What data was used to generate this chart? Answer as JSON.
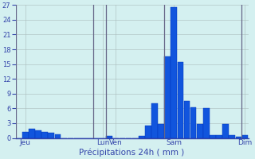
{
  "xlabel": "Précipitations 24h ( mm )",
  "background_color": "#d4f0f0",
  "bar_color": "#1155dd",
  "bar_edge_color": "#0033bb",
  "grid_color": "#aabbbb",
  "vline_color": "#666688",
  "ylim": [
    0,
    27
  ],
  "yticks": [
    0,
    3,
    6,
    9,
    12,
    15,
    18,
    21,
    24,
    27
  ],
  "tick_color": "#3344aa",
  "label_color": "#3344aa",
  "values": [
    0,
    1.3,
    1.8,
    1.6,
    1.3,
    1.0,
    0.8,
    0,
    0,
    0,
    0,
    0,
    0,
    0,
    0.4,
    0,
    0,
    0,
    0,
    0.4,
    2.5,
    7.0,
    2.8,
    16.5,
    26.5,
    15.5,
    7.5,
    6.2,
    2.8,
    6.0,
    0.5,
    0.5,
    2.8,
    0.5,
    0.3,
    0.6
  ],
  "day_labels": [
    "Jeu",
    "Lun",
    "Ven",
    "Sam",
    "Dim"
  ],
  "day_tick_pos": [
    1,
    13,
    15,
    24,
    35
  ],
  "vline_pos": [
    0,
    12,
    14,
    23,
    35
  ]
}
